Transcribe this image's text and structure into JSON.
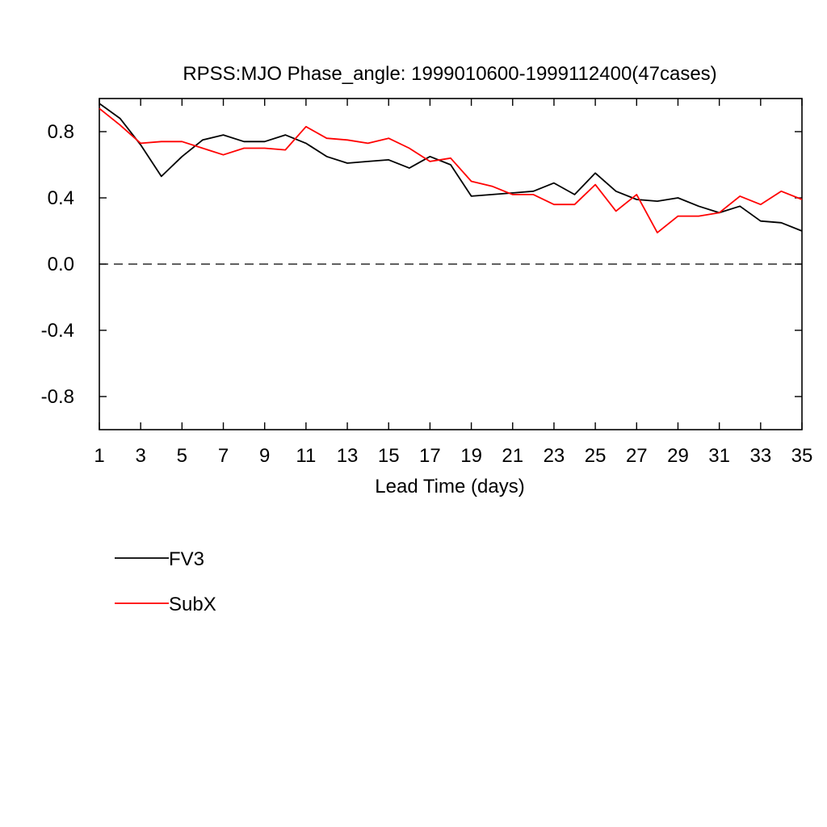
{
  "chart_data": {
    "type": "line",
    "title": "RPSS:MJO Phase_angle: 1999010600-1999112400(47cases)",
    "xlabel": "Lead Time (days)",
    "ylabel": "",
    "xlim": [
      1,
      35
    ],
    "ylim": [
      -1.0,
      1.0
    ],
    "x_ticks": [
      1,
      3,
      5,
      7,
      9,
      11,
      13,
      15,
      17,
      19,
      21,
      23,
      25,
      27,
      29,
      31,
      33,
      35
    ],
    "y_ticks": [
      -0.8,
      -0.4,
      0.0,
      0.4,
      0.8
    ],
    "y_tick_labels": [
      "-0.8",
      "-0.4",
      "0.0",
      "0.4",
      "0.8"
    ],
    "reference_line": {
      "y": 0.0,
      "style": "dashed"
    },
    "grid": false,
    "legend_position": "bottom-left",
    "x": [
      1,
      2,
      3,
      4,
      5,
      6,
      7,
      8,
      9,
      10,
      11,
      12,
      13,
      14,
      15,
      16,
      17,
      18,
      19,
      20,
      21,
      22,
      23,
      24,
      25,
      26,
      27,
      28,
      29,
      30,
      31,
      32,
      33,
      34,
      35
    ],
    "series": [
      {
        "name": "FV3",
        "color": "#000000",
        "values": [
          0.97,
          0.88,
          0.72,
          0.53,
          0.65,
          0.75,
          0.78,
          0.74,
          0.74,
          0.78,
          0.73,
          0.65,
          0.61,
          0.62,
          0.63,
          0.58,
          0.65,
          0.6,
          0.41,
          0.42,
          0.43,
          0.44,
          0.49,
          0.42,
          0.55,
          0.44,
          0.39,
          0.38,
          0.4,
          0.35,
          0.31,
          0.35,
          0.26,
          0.25,
          0.2
        ]
      },
      {
        "name": "SubX",
        "color": "#ff0000",
        "values": [
          0.94,
          0.84,
          0.73,
          0.74,
          0.74,
          0.7,
          0.66,
          0.7,
          0.7,
          0.69,
          0.83,
          0.76,
          0.75,
          0.73,
          0.76,
          0.7,
          0.62,
          0.64,
          0.5,
          0.47,
          0.42,
          0.42,
          0.36,
          0.36,
          0.48,
          0.32,
          0.42,
          0.19,
          0.29,
          0.29,
          0.31,
          0.41,
          0.36,
          0.44,
          0.39
        ]
      }
    ]
  }
}
